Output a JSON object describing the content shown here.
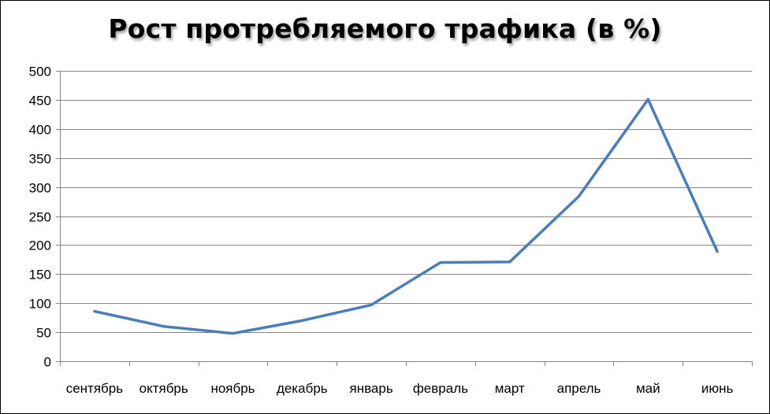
{
  "chart_data": {
    "type": "line",
    "title": "Рост протребляемого трафика (в %)",
    "xlabel": "",
    "ylabel": "",
    "categories": [
      "сентябрь",
      "октябрь",
      "ноябрь",
      "декабрь",
      "январь",
      "февраль",
      "март",
      "апрель",
      "май",
      "июнь"
    ],
    "series": [
      {
        "values": [
          86,
          60,
          48,
          70,
          97,
          170,
          171,
          284,
          451,
          189
        ],
        "color": "#4a7ebb"
      }
    ],
    "ylim": [
      0,
      500
    ],
    "yticks": [
      0,
      50,
      100,
      150,
      200,
      250,
      300,
      350,
      400,
      450,
      500
    ],
    "grid": true,
    "legend": "none"
  }
}
